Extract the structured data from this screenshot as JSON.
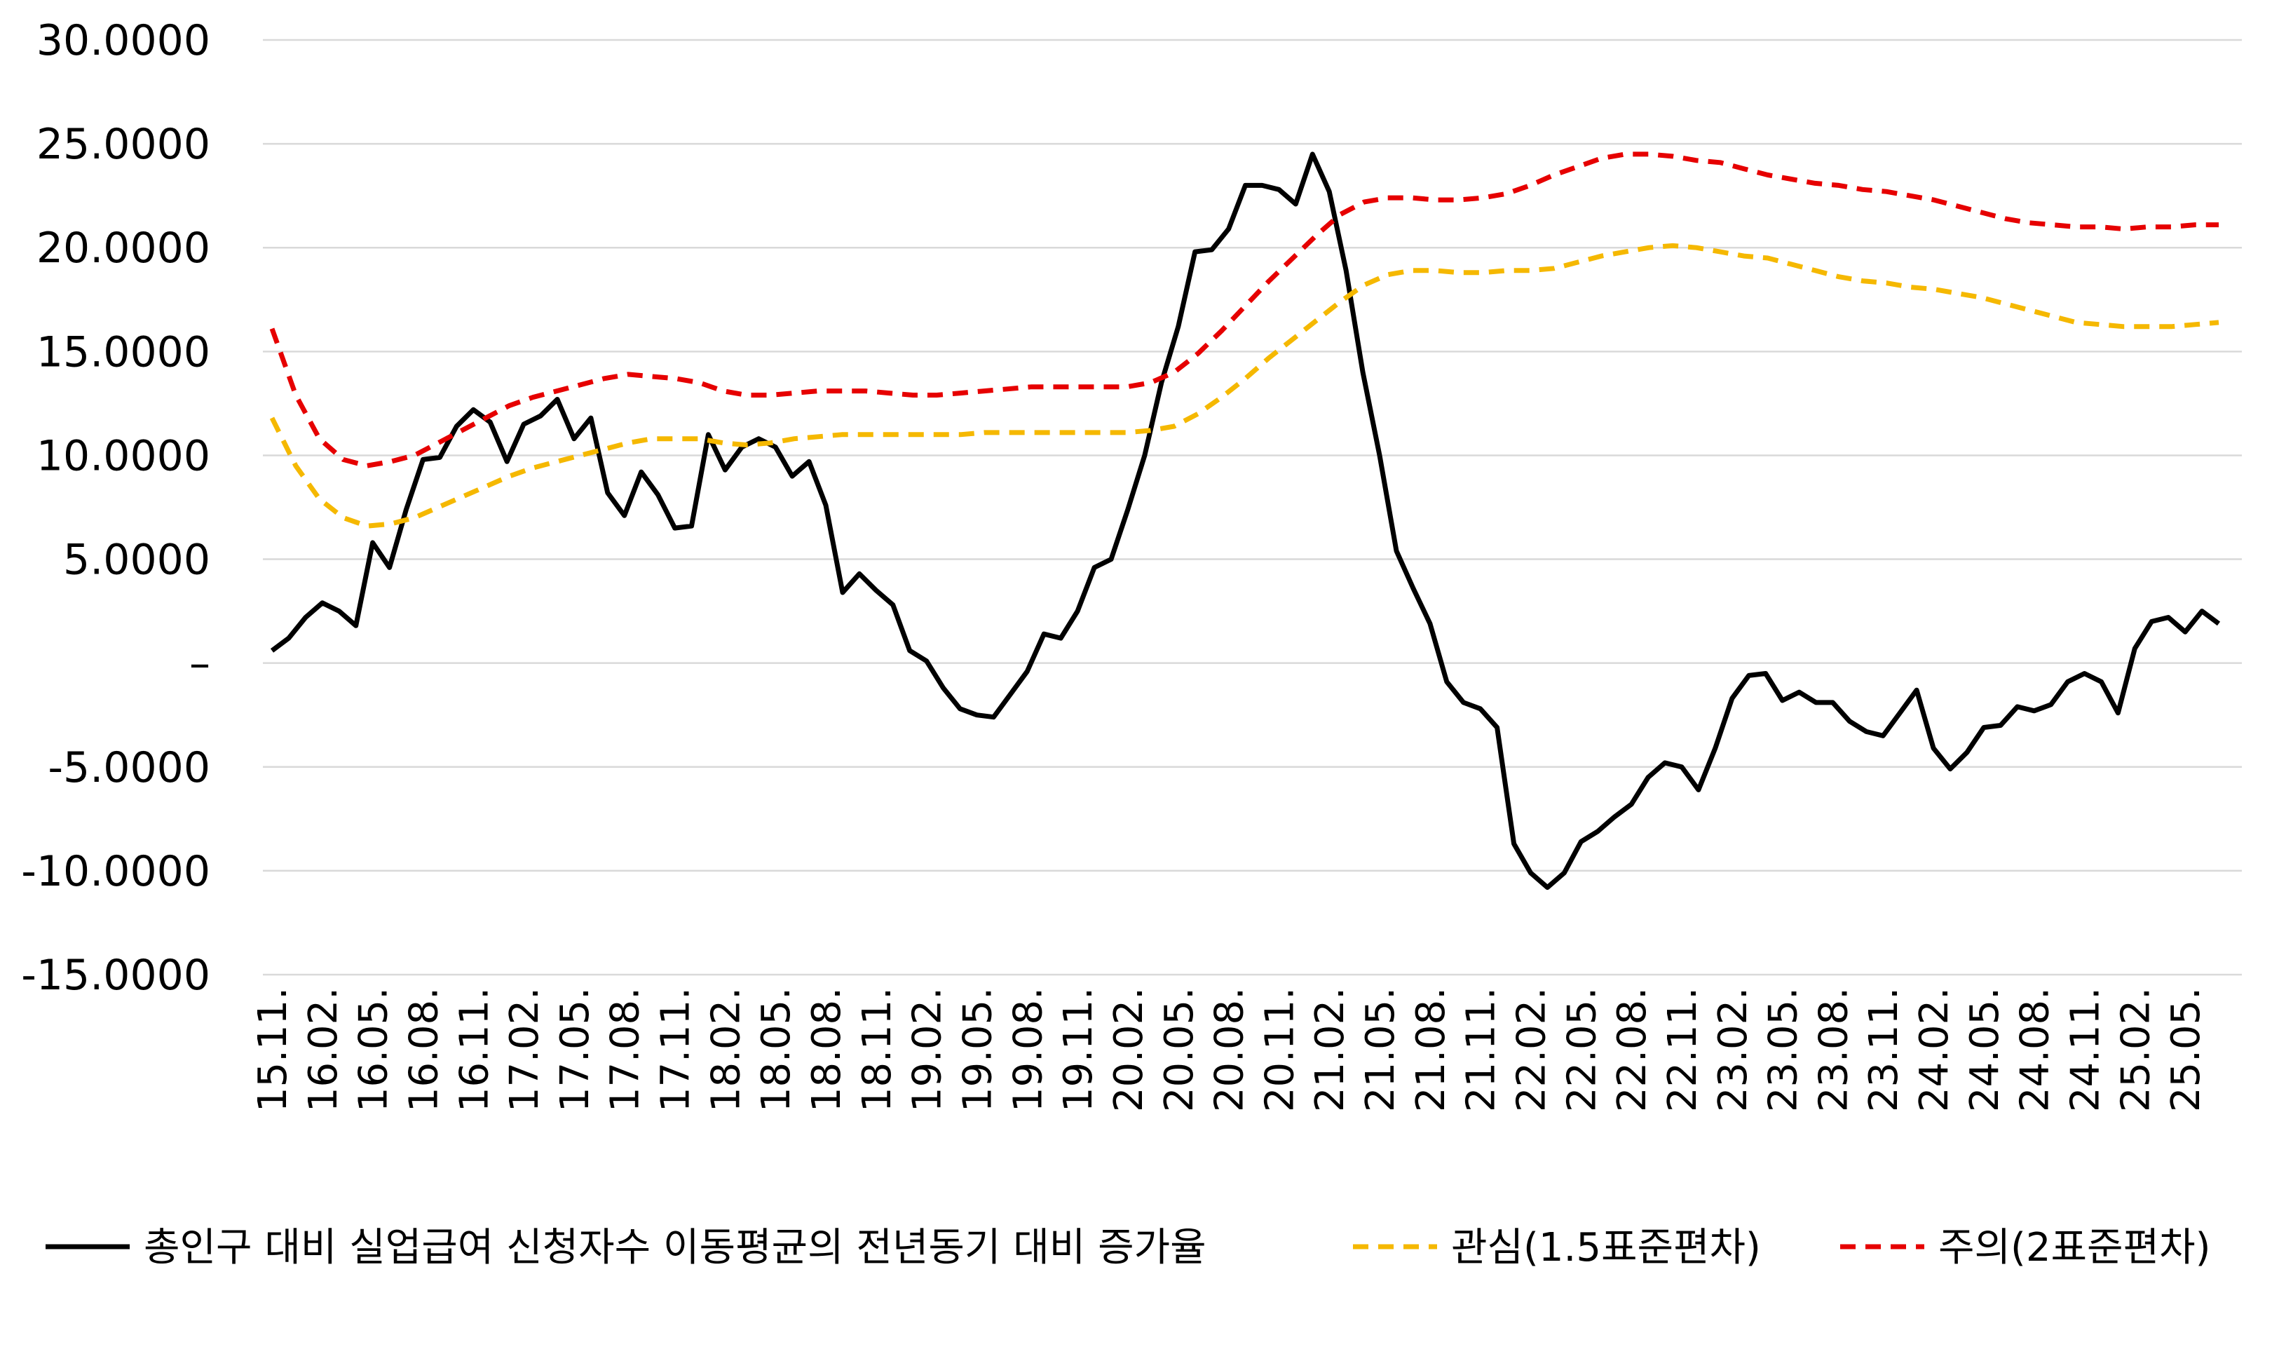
{
  "chart_data": {
    "type": "line",
    "title": "",
    "xlabel": "",
    "ylabel": "",
    "ylim": [
      -15,
      30
    ],
    "yticks": [
      30,
      25,
      20,
      15,
      10,
      5,
      0,
      -5,
      -10,
      -15
    ],
    "ytick_labels": [
      "30.0000",
      "25.0000",
      "20.0000",
      "15.0000",
      "10.0000",
      "5.0000",
      "–",
      "-5.0000",
      "-10.0000",
      "-15.0000"
    ],
    "grid": true,
    "legend_position": "bottom",
    "x_start": "2015-11",
    "x_labels": [
      "15.11.",
      "16.02.",
      "16.05.",
      "16.08.",
      "16.11.",
      "17.02.",
      "17.05.",
      "17.08.",
      "17.11.",
      "18.02.",
      "18.05.",
      "18.08.",
      "18.11.",
      "19.02.",
      "19.05.",
      "19.08.",
      "19.11.",
      "20.02.",
      "20.05.",
      "20.08.",
      "20.11.",
      "21.02.",
      "21.05.",
      "21.08.",
      "21.11.",
      "22.02.",
      "22.05.",
      "22.08.",
      "22.11.",
      "23.02.",
      "23.05.",
      "23.08.",
      "23.11.",
      "24.02.",
      "24.05.",
      "24.08.",
      "24.11.",
      "25.02.",
      "25.05."
    ],
    "series": [
      {
        "name": "총인구 대비 실업급여 신청자수 이동평균의 전년동기 대비 증가율",
        "color": "#000000",
        "dash": "solid",
        "values": [
          0.6,
          1.2,
          2.2,
          2.9,
          2.5,
          1.8,
          5.8,
          4.6,
          7.4,
          9.8,
          9.9,
          11.4,
          12.2,
          11.6,
          9.7,
          11.5,
          11.9,
          12.7,
          10.8,
          11.8,
          8.2,
          7.1,
          9.2,
          8.1,
          6.5,
          6.6,
          11.0,
          9.3,
          10.4,
          10.8,
          10.4,
          9.0,
          9.7,
          7.6,
          3.4,
          4.3,
          3.5,
          2.8,
          0.6,
          0.1,
          -1.2,
          -2.2,
          -2.5,
          -2.6,
          -1.5,
          -0.4,
          1.4,
          1.2,
          2.5,
          4.6,
          5.0,
          7.4,
          10.0,
          13.5,
          16.2,
          19.8,
          19.9,
          20.9,
          23.0,
          23.0,
          22.8,
          22.1,
          24.5,
          22.7,
          18.9,
          14.0,
          10.0,
          5.4,
          3.6,
          1.9,
          -0.9,
          -1.9,
          -2.2,
          -3.1,
          -8.7,
          -10.1,
          -10.8,
          -10.1,
          -8.6,
          -8.1,
          -7.4,
          -6.8,
          -5.5,
          -4.8,
          -5.0,
          -6.1,
          -4.1,
          -1.7,
          -0.6,
          -0.5,
          -1.8,
          -1.4,
          -1.9,
          -1.9,
          -2.8,
          -3.3,
          -3.5,
          -2.4,
          -1.3,
          -4.1,
          -5.1,
          -4.3,
          -3.1,
          -3.0,
          -2.1,
          -2.3,
          -2.0,
          -0.9,
          -0.5,
          -0.9,
          -2.4,
          0.7,
          2.0,
          2.2,
          1.5,
          2.5,
          1.9
        ]
      },
      {
        "name": "관심(1.5표준편차)",
        "color": "#F5B800",
        "dash": "dashed",
        "values": [
          11.8,
          9.5,
          7.9,
          7.0,
          6.6,
          6.7,
          7.0,
          7.5,
          8.0,
          8.5,
          9.0,
          9.4,
          9.7,
          10.0,
          10.3,
          10.6,
          10.8,
          10.8,
          10.8,
          10.6,
          10.5,
          10.6,
          10.8,
          10.9,
          11.0,
          11.0,
          11.0,
          11.0,
          11.0,
          11.0,
          11.1,
          11.1,
          11.1,
          11.1,
          11.1,
          11.1,
          11.1,
          11.2,
          11.4,
          12.0,
          12.8,
          13.7,
          14.7,
          15.6,
          16.5,
          17.4,
          18.2,
          18.7,
          18.9,
          18.9,
          18.8,
          18.8,
          18.9,
          18.9,
          19.0,
          19.3,
          19.6,
          19.8,
          20.0,
          20.1,
          20.0,
          19.8,
          19.6,
          19.5,
          19.2,
          18.9,
          18.6,
          18.4,
          18.3,
          18.1,
          18.0,
          17.8,
          17.6,
          17.3,
          17.0,
          16.7,
          16.4,
          16.3,
          16.2,
          16.2,
          16.2,
          16.3,
          16.4
        ]
      },
      {
        "name": "주의(2표준편차)",
        "color": "#E60000",
        "dash": "dashed",
        "values": [
          16.1,
          12.9,
          10.8,
          9.8,
          9.5,
          9.7,
          10.0,
          10.6,
          11.2,
          11.8,
          12.4,
          12.8,
          13.1,
          13.4,
          13.7,
          13.9,
          13.8,
          13.7,
          13.5,
          13.1,
          12.9,
          12.9,
          13.0,
          13.1,
          13.1,
          13.1,
          13.0,
          12.9,
          12.9,
          13.0,
          13.1,
          13.2,
          13.3,
          13.3,
          13.3,
          13.3,
          13.3,
          13.5,
          14.0,
          14.9,
          16.0,
          17.2,
          18.4,
          19.5,
          20.6,
          21.6,
          22.2,
          22.4,
          22.4,
          22.3,
          22.3,
          22.4,
          22.6,
          23.0,
          23.5,
          23.9,
          24.3,
          24.5,
          24.5,
          24.4,
          24.2,
          24.1,
          23.8,
          23.5,
          23.3,
          23.1,
          23.0,
          22.8,
          22.7,
          22.5,
          22.3,
          22.0,
          21.7,
          21.4,
          21.2,
          21.1,
          21.0,
          21.0,
          20.9,
          21.0,
          21.0,
          21.1,
          21.1
        ]
      }
    ]
  }
}
